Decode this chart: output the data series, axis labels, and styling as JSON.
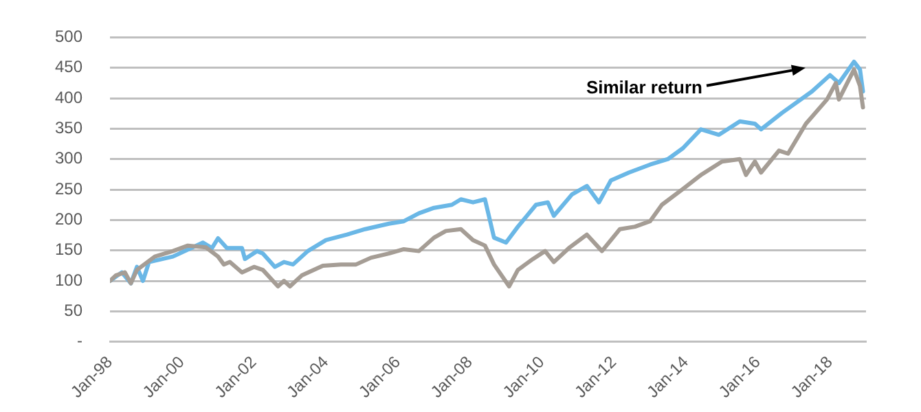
{
  "chart_data": {
    "type": "line",
    "xlim": [
      "1998-01",
      "2019-01"
    ],
    "xticks": [
      {
        "value": "1998-01",
        "label": "Jan-98"
      },
      {
        "value": "2000-01",
        "label": "Jan-00"
      },
      {
        "value": "2002-01",
        "label": "Jan-02"
      },
      {
        "value": "2004-01",
        "label": "Jan-04"
      },
      {
        "value": "2006-01",
        "label": "Jan-06"
      },
      {
        "value": "2008-01",
        "label": "Jan-08"
      },
      {
        "value": "2010-01",
        "label": "Jan-10"
      },
      {
        "value": "2012-01",
        "label": "Jan-12"
      },
      {
        "value": "2014-01",
        "label": "Jan-14"
      },
      {
        "value": "2016-01",
        "label": "Jan-16"
      },
      {
        "value": "2018-01",
        "label": "Jan-18"
      }
    ],
    "ylim": [
      0,
      500
    ],
    "yticks": [
      {
        "value": 0,
        "label": "-"
      },
      50,
      100,
      150,
      200,
      250,
      300,
      350,
      400,
      450,
      500
    ],
    "grid": "y",
    "marker": "none",
    "series": [
      {
        "color": "#a59d95",
        "x": [
          "1998-01",
          "1998-03",
          "1998-06",
          "1998-08",
          "1998-10",
          "1999-04",
          "1999-10",
          "2000-03",
          "2000-09",
          "2001-01",
          "2001-03",
          "2001-05",
          "2001-09",
          "2002-01",
          "2002-04",
          "2002-09",
          "2002-11",
          "2003-01",
          "2003-05",
          "2003-12",
          "2004-06",
          "2004-11",
          "2005-04",
          "2005-10",
          "2006-03",
          "2006-08",
          "2007-01",
          "2007-05",
          "2007-10",
          "2008-02",
          "2008-06",
          "2008-09",
          "2009-02",
          "2009-05",
          "2009-10",
          "2010-02",
          "2010-05",
          "2010-10",
          "2011-04",
          "2011-09",
          "2012-03",
          "2012-08",
          "2013-01",
          "2013-05",
          "2013-12",
          "2014-06",
          "2015-01",
          "2015-07",
          "2015-09",
          "2015-12",
          "2016-02",
          "2016-08",
          "2016-11",
          "2017-05",
          "2017-12",
          "2018-03",
          "2018-04",
          "2018-09",
          "2018-11",
          "2018-12"
        ],
        "values": [
          100,
          109,
          114,
          96,
          118,
          140,
          149,
          158,
          155,
          140,
          127,
          131,
          114,
          123,
          118,
          91,
          100,
          91,
          109,
          125,
          127,
          127,
          138,
          145,
          152,
          149,
          171,
          182,
          185,
          167,
          158,
          127,
          91,
          118,
          136,
          149,
          131,
          154,
          176,
          149,
          185,
          189,
          198,
          225,
          251,
          274,
          296,
          300,
          274,
          296,
          278,
          314,
          309,
          358,
          398,
          425,
          398,
          447,
          420,
          385
        ]
      },
      {
        "color": "#6ab7e6",
        "x": [
          "1998-01",
          "1998-05",
          "1998-08",
          "1998-10",
          "1998-12",
          "1999-02",
          "1999-10",
          "2000-08",
          "2000-11",
          "2001-01",
          "2001-04",
          "2001-09",
          "2001-10",
          "2002-02",
          "2002-04",
          "2002-08",
          "2002-11",
          "2003-02",
          "2003-07",
          "2004-01",
          "2004-08",
          "2005-02",
          "2005-10",
          "2006-03",
          "2006-08",
          "2007-01",
          "2007-07",
          "2007-10",
          "2008-02",
          "2008-06",
          "2008-09",
          "2009-01",
          "2009-05",
          "2009-11",
          "2010-03",
          "2010-05",
          "2010-11",
          "2011-04",
          "2011-08",
          "2011-12",
          "2012-06",
          "2013-01",
          "2013-07",
          "2013-12",
          "2014-06",
          "2014-12",
          "2015-07",
          "2015-12",
          "2016-02",
          "2016-09",
          "2017-07",
          "2018-01",
          "2018-04",
          "2018-09",
          "2018-11",
          "2018-12"
        ],
        "values": [
          100,
          114,
          96,
          123,
          100,
          131,
          140,
          163,
          154,
          170,
          154,
          154,
          136,
          149,
          145,
          123,
          131,
          127,
          149,
          167,
          176,
          185,
          194,
          198,
          211,
          220,
          225,
          234,
          229,
          234,
          171,
          163,
          189,
          225,
          229,
          207,
          242,
          256,
          229,
          265,
          278,
          291,
          300,
          318,
          349,
          340,
          362,
          358,
          349,
          376,
          411,
          438,
          425,
          460,
          447,
          411
        ]
      }
    ],
    "annotations": [
      "Similar return"
    ]
  }
}
